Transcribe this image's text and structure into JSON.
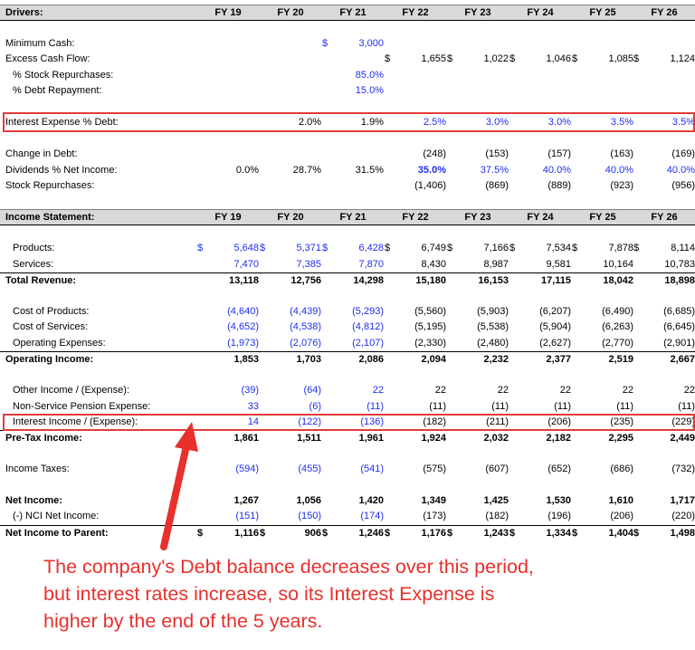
{
  "years": [
    "FY 19",
    "FY 20",
    "FY 21",
    "FY 22",
    "FY 23",
    "FY 24",
    "FY 25",
    "FY 26"
  ],
  "colors": {
    "input_blue": "#1f2ef0",
    "highlight_red": "#e43a3a",
    "header_gray": "#d9d9d9"
  },
  "drivers": {
    "title": "Drivers:",
    "rows": [
      {
        "label": "Minimum Cash:",
        "cells": [
          {},
          {},
          {
            "d": "$",
            "v": "3,000",
            "blue": true
          },
          {},
          {},
          {},
          {},
          {}
        ]
      },
      {
        "label": "Excess Cash Flow:",
        "cells": [
          {},
          {},
          {},
          {
            "d": "$",
            "v": "1,655"
          },
          {
            "d": "$",
            "v": "1,022"
          },
          {
            "d": "$",
            "v": "1,046"
          },
          {
            "d": "$",
            "v": "1,085"
          },
          {
            "d": "$",
            "v": "1,124"
          }
        ]
      },
      {
        "label": "% Stock Repurchases:",
        "cells": [
          {},
          {},
          {
            "v": "85.0%",
            "blue": true
          },
          {},
          {},
          {},
          {},
          {}
        ]
      },
      {
        "label": "% Debt Repayment:",
        "cells": [
          {},
          {},
          {
            "v": "15.0%",
            "blue": true
          },
          {},
          {},
          {},
          {},
          {}
        ]
      },
      {
        "label": "Interest Expense % Debt:",
        "cells": [
          {},
          {
            "v": "2.0%"
          },
          {
            "v": "1.9%"
          },
          {
            "v": "2.5%",
            "blue": true
          },
          {
            "v": "3.0%",
            "blue": true
          },
          {
            "v": "3.0%",
            "blue": true
          },
          {
            "v": "3.5%",
            "blue": true
          },
          {
            "v": "3.5%",
            "blue": true
          }
        ]
      },
      {
        "label": "Change in Debt:",
        "cells": [
          {},
          {},
          {},
          {
            "v": "(248)"
          },
          {
            "v": "(153)"
          },
          {
            "v": "(157)"
          },
          {
            "v": "(163)"
          },
          {
            "v": "(169)"
          }
        ]
      },
      {
        "label": "Dividends % Net Income:",
        "cells": [
          {
            "v": "0.0%"
          },
          {
            "v": "28.7%"
          },
          {
            "v": "31.5%"
          },
          {
            "v": "35.0%",
            "blue": true,
            "bold": true
          },
          {
            "v": "37.5%",
            "blue": true
          },
          {
            "v": "40.0%",
            "blue": true
          },
          {
            "v": "40.0%",
            "blue": true
          },
          {
            "v": "40.0%",
            "blue": true
          }
        ]
      },
      {
        "label": "Stock Repurchases:",
        "cells": [
          {},
          {},
          {},
          {
            "v": "(1,406)"
          },
          {
            "v": "(869)"
          },
          {
            "v": "(889)"
          },
          {
            "v": "(923)"
          },
          {
            "v": "(956)"
          }
        ]
      }
    ]
  },
  "income": {
    "title": "Income Statement:",
    "rows": [
      {
        "label": "Products:",
        "cells": [
          {
            "d": "$",
            "v": "5,648",
            "blue": true
          },
          {
            "d": "$",
            "v": "5,371",
            "blue": true
          },
          {
            "d": "$",
            "v": "6,428",
            "blue": true
          },
          {
            "d": "$",
            "v": "6,749"
          },
          {
            "d": "$",
            "v": "7,166"
          },
          {
            "d": "$",
            "v": "7,534"
          },
          {
            "d": "$",
            "v": "7,878"
          },
          {
            "d": "$",
            "v": "8,114"
          }
        ]
      },
      {
        "label": "Services:",
        "cells": [
          {
            "v": "7,470",
            "blue": true
          },
          {
            "v": "7,385",
            "blue": true
          },
          {
            "v": "7,870",
            "blue": true
          },
          {
            "v": "8,430"
          },
          {
            "v": "8,987"
          },
          {
            "v": "9,581"
          },
          {
            "v": "10,164"
          },
          {
            "v": "10,783"
          }
        ]
      },
      {
        "label": "Total Revenue:",
        "cells": [
          {
            "v": "13,118"
          },
          {
            "v": "12,756"
          },
          {
            "v": "14,298"
          },
          {
            "v": "15,180"
          },
          {
            "v": "16,153"
          },
          {
            "v": "17,115"
          },
          {
            "v": "18,042"
          },
          {
            "v": "18,898"
          }
        ]
      },
      {
        "label": "Cost of Products:",
        "cells": [
          {
            "v": "(4,640)",
            "blue": true
          },
          {
            "v": "(4,439)",
            "blue": true
          },
          {
            "v": "(5,293)",
            "blue": true
          },
          {
            "v": "(5,560)"
          },
          {
            "v": "(5,903)"
          },
          {
            "v": "(6,207)"
          },
          {
            "v": "(6,490)"
          },
          {
            "v": "(6,685)"
          }
        ]
      },
      {
        "label": "Cost of Services:",
        "cells": [
          {
            "v": "(4,652)",
            "blue": true
          },
          {
            "v": "(4,538)",
            "blue": true
          },
          {
            "v": "(4,812)",
            "blue": true
          },
          {
            "v": "(5,195)"
          },
          {
            "v": "(5,538)"
          },
          {
            "v": "(5,904)"
          },
          {
            "v": "(6,263)"
          },
          {
            "v": "(6,645)"
          }
        ]
      },
      {
        "label": "Operating Expenses:",
        "cells": [
          {
            "v": "(1,973)",
            "blue": true
          },
          {
            "v": "(2,076)",
            "blue": true
          },
          {
            "v": "(2,107)",
            "blue": true
          },
          {
            "v": "(2,330)"
          },
          {
            "v": "(2,480)"
          },
          {
            "v": "(2,627)"
          },
          {
            "v": "(2,770)"
          },
          {
            "v": "(2,901)"
          }
        ]
      },
      {
        "label": "Operating Income:",
        "cells": [
          {
            "v": "1,853"
          },
          {
            "v": "1,703"
          },
          {
            "v": "2,086"
          },
          {
            "v": "2,094"
          },
          {
            "v": "2,232"
          },
          {
            "v": "2,377"
          },
          {
            "v": "2,519"
          },
          {
            "v": "2,667"
          }
        ]
      },
      {
        "label": "Other Income / (Expense):",
        "cells": [
          {
            "v": "(39)",
            "blue": true
          },
          {
            "v": "(64)",
            "blue": true
          },
          {
            "v": "22",
            "blue": true
          },
          {
            "v": "22"
          },
          {
            "v": "22"
          },
          {
            "v": "22"
          },
          {
            "v": "22"
          },
          {
            "v": "22"
          }
        ]
      },
      {
        "label": "Non-Service Pension Expense:",
        "cells": [
          {
            "v": "33",
            "blue": true
          },
          {
            "v": "(6)",
            "blue": true
          },
          {
            "v": "(11)",
            "blue": true
          },
          {
            "v": "(11)"
          },
          {
            "v": "(11)"
          },
          {
            "v": "(11)"
          },
          {
            "v": "(11)"
          },
          {
            "v": "(11)"
          }
        ]
      },
      {
        "label": "Interest Income / (Expense):",
        "cells": [
          {
            "v": "14",
            "blue": true
          },
          {
            "v": "(122)",
            "blue": true
          },
          {
            "v": "(136)",
            "blue": true
          },
          {
            "v": "(182)"
          },
          {
            "v": "(211)"
          },
          {
            "v": "(206)"
          },
          {
            "v": "(235)"
          },
          {
            "v": "(229)"
          }
        ]
      },
      {
        "label": "Pre-Tax Income:",
        "cells": [
          {
            "v": "1,861"
          },
          {
            "v": "1,511"
          },
          {
            "v": "1,961"
          },
          {
            "v": "1,924"
          },
          {
            "v": "2,032"
          },
          {
            "v": "2,182"
          },
          {
            "v": "2,295"
          },
          {
            "v": "2,449"
          }
        ]
      },
      {
        "label": "Income Taxes:",
        "cells": [
          {
            "v": "(594)",
            "blue": true
          },
          {
            "v": "(455)",
            "blue": true
          },
          {
            "v": "(541)",
            "blue": true
          },
          {
            "v": "(575)"
          },
          {
            "v": "(607)"
          },
          {
            "v": "(652)"
          },
          {
            "v": "(686)"
          },
          {
            "v": "(732)"
          }
        ]
      },
      {
        "label": "Net Income:",
        "cells": [
          {
            "v": "1,267"
          },
          {
            "v": "1,056"
          },
          {
            "v": "1,420"
          },
          {
            "v": "1,349"
          },
          {
            "v": "1,425"
          },
          {
            "v": "1,530"
          },
          {
            "v": "1,610"
          },
          {
            "v": "1,717"
          }
        ]
      },
      {
        "label": "(-) NCI Net Income:",
        "cells": [
          {
            "v": "(151)",
            "blue": true
          },
          {
            "v": "(150)",
            "blue": true
          },
          {
            "v": "(174)",
            "blue": true
          },
          {
            "v": "(173)"
          },
          {
            "v": "(182)"
          },
          {
            "v": "(196)"
          },
          {
            "v": "(206)"
          },
          {
            "v": "(220)"
          }
        ]
      },
      {
        "label": "Net Income to Parent:",
        "cells": [
          {
            "d": "$",
            "v": "1,116"
          },
          {
            "d": "$",
            "v": "906"
          },
          {
            "d": "$",
            "v": "1,246"
          },
          {
            "d": "$",
            "v": "1,176"
          },
          {
            "d": "$",
            "v": "1,243"
          },
          {
            "d": "$",
            "v": "1,334"
          },
          {
            "d": "$",
            "v": "1,404"
          },
          {
            "d": "$",
            "v": "1,498"
          }
        ]
      }
    ]
  },
  "annotation": {
    "lines": [
      "The company's Debt balance decreases over this period,",
      "but interest rates increase, so its Interest Expense is",
      "higher by the end of the 5 years."
    ]
  }
}
